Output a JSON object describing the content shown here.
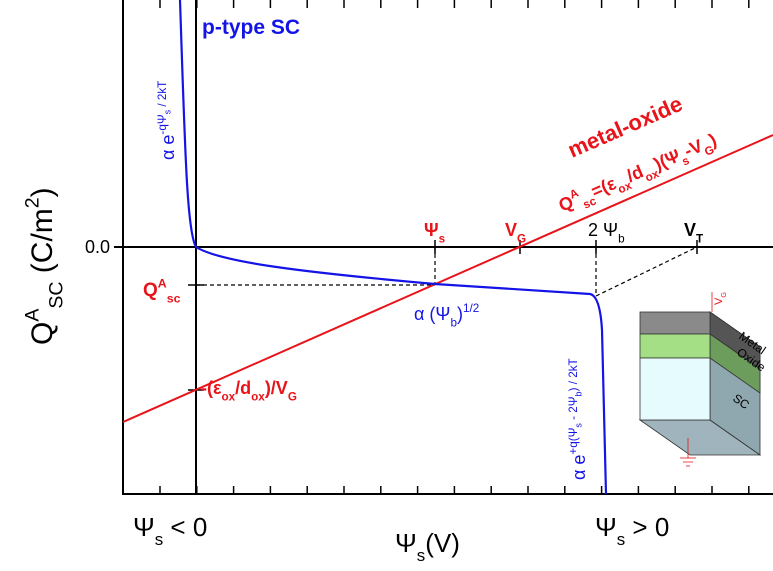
{
  "title": "p-type SC",
  "y_label": [
    "Q",
    "A",
    "SC",
    " (C/m",
    "2",
    ")"
  ],
  "y_tick": "0.0",
  "exp_left": [
    "α  e",
    "-qΨ",
    "s",
    " / 2kT"
  ],
  "metal_oxide": "metal-oxide",
  "equation": [
    "Q",
    "A",
    "sc",
    "=(ε",
    "ox",
    "/d",
    "ox",
    ")(Ψ",
    "s",
    "-V",
    "G",
    ")"
  ],
  "mark_psi_s": [
    "Ψ",
    "s"
  ],
  "mark_vg": [
    "V",
    "G"
  ],
  "mark_2psib": [
    "2 Ψ",
    "b"
  ],
  "mark_vt": [
    "V",
    "T"
  ],
  "q_left": [
    "Q",
    "A",
    "sc"
  ],
  "intercept": [
    "-(ε",
    "ox",
    "/d",
    "ox",
    ")/V",
    "G"
  ],
  "sqrt_label": [
    "α  (Ψ",
    "b",
    ")",
    "1/2"
  ],
  "exp_right": [
    "α  e",
    "+q(Ψ",
    "s",
    " - 2Ψ",
    "b",
    ") / 2kT"
  ],
  "x_left": [
    "Ψ",
    "s",
    " < 0"
  ],
  "x_label": [
    "Ψ",
    "s",
    "(V)"
  ],
  "x_right": [
    "Ψ",
    "s",
    " > 0"
  ],
  "inset": {
    "vg": [
      "V",
      "G"
    ],
    "metal": "Metal",
    "oxide": "Oxide",
    "sc": "SC"
  }
}
